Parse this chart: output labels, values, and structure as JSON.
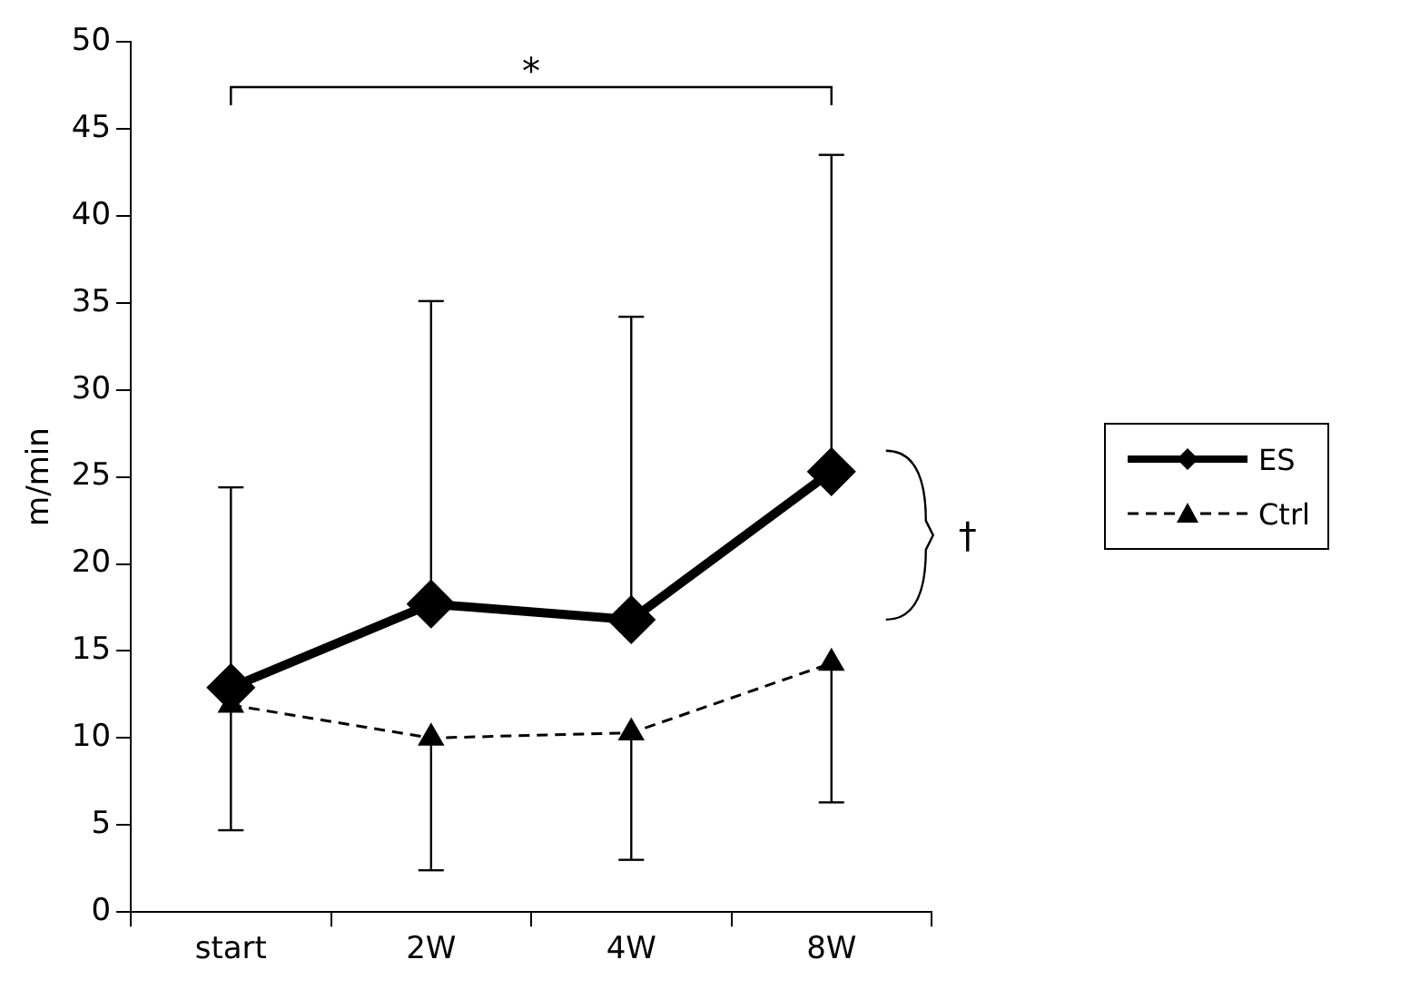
{
  "chart_data": {
    "type": "line",
    "ylabel": "m/min",
    "categories": [
      "start",
      "2W",
      "4W",
      "8W"
    ],
    "ylim": [
      0,
      50
    ],
    "yticks": [
      0,
      5,
      10,
      15,
      20,
      25,
      30,
      35,
      40,
      45,
      50
    ],
    "legend": "right",
    "grid": false,
    "series": [
      {
        "name": "ES",
        "color": "#000000",
        "marker": "diamond",
        "line_style": "solid",
        "values": [
          12.9,
          17.7,
          16.8,
          25.3
        ],
        "errors": [
          [
            12.9,
            24.4
          ],
          [
            17.7,
            35.1
          ],
          [
            16.8,
            34.2
          ],
          [
            25.3,
            43.5
          ]
        ]
      },
      {
        "name": "Ctrl",
        "color": "#000000",
        "marker": "triangle",
        "line_style": "dashed",
        "values": [
          11.9,
          10.0,
          10.3,
          14.3
        ],
        "errors": [
          [
            4.7,
            11.9
          ],
          [
            2.4,
            10.0
          ],
          [
            3.0,
            10.3
          ],
          [
            6.3,
            14.3
          ]
        ]
      }
    ],
    "annotations": [
      "*",
      "†"
    ]
  }
}
